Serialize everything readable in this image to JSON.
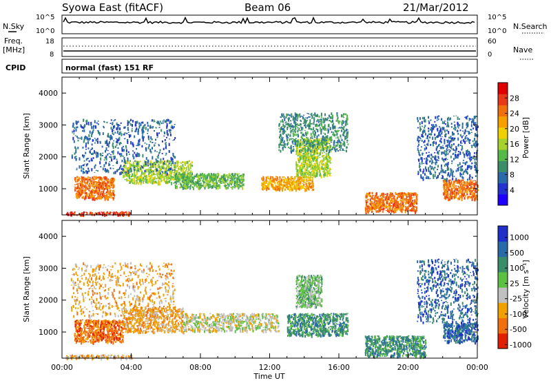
{
  "header": {
    "title": "Syowa East (fitACF)",
    "beam": "Beam 06",
    "date": "21/Mar/2012"
  },
  "status_panels": {
    "nsky_label": "N.Sky",
    "nsky_ticks": [
      "10^5",
      "10^0"
    ],
    "nsearch_label": "N.Search",
    "freq_label": "Freq.",
    "freq_unit": "[MHz]",
    "freq_ticks": [
      "18",
      "8"
    ],
    "nave_label": "Nave",
    "nave_ticks": [
      "60",
      "0"
    ],
    "cpid_label": "CPID",
    "cpid_text": "normal (fast) 151 RF"
  },
  "chart_data": [
    {
      "type": "heatmap",
      "name": "power",
      "ylabel": "Slant Range [km]",
      "xlabel": "",
      "x_ticks": [
        "00:00",
        "04:00",
        "08:00",
        "12:00",
        "16:00",
        "20:00",
        "00:00"
      ],
      "y_ticks": [
        "1000",
        "2000",
        "3000",
        "4000"
      ],
      "ylim": [
        180,
        4500
      ],
      "colorbar": {
        "label": "Power [dB]",
        "ticks": [
          "4",
          "8",
          "12",
          "16",
          "20",
          "24",
          "28"
        ],
        "colors": [
          "#1f00ff",
          "#2233d0",
          "#2a6aa8",
          "#3a8c6a",
          "#56b848",
          "#a7d12e",
          "#f0d000",
          "#f5a000",
          "#f07010",
          "#e83a1a",
          "#e00000"
        ]
      },
      "regions": [
        {
          "x0": 0.7,
          "x1": 3.0,
          "y0": 700,
          "y1": 1400,
          "level": 8
        },
        {
          "x0": 0.2,
          "x1": 4.0,
          "y0": 200,
          "y1": 300,
          "level": 9
        },
        {
          "x0": 3.5,
          "x1": 7.5,
          "y0": 1200,
          "y1": 1900,
          "level": 5
        },
        {
          "x0": 6.5,
          "x1": 10.5,
          "y0": 1050,
          "y1": 1500,
          "level": 4
        },
        {
          "x0": 11.5,
          "x1": 14.5,
          "y0": 1000,
          "y1": 1400,
          "level": 7
        },
        {
          "x0": 13.5,
          "x1": 15.5,
          "y0": 1400,
          "y1": 2600,
          "level": 5
        },
        {
          "x0": 17.5,
          "x1": 20.5,
          "y0": 300,
          "y1": 900,
          "level": 8
        },
        {
          "x0": 22.0,
          "x1": 24.0,
          "y0": 700,
          "y1": 1300,
          "level": 8
        },
        {
          "x0": 0.5,
          "x1": 6.5,
          "y0": 1500,
          "y1": 3200,
          "level": 2
        },
        {
          "x0": 12.5,
          "x1": 16.5,
          "y0": 2200,
          "y1": 3400,
          "level": 3
        },
        {
          "x0": 20.5,
          "x1": 24.0,
          "y0": 1300,
          "y1": 3300,
          "level": 2
        }
      ]
    },
    {
      "type": "heatmap",
      "name": "velocity",
      "ylabel": "Slant Range [km]",
      "xlabel": "Time UT",
      "x_ticks": [
        "00:00",
        "04:00",
        "08:00",
        "12:00",
        "16:00",
        "20:00",
        "00:00"
      ],
      "y_ticks": [
        "1000",
        "2000",
        "3000",
        "4000"
      ],
      "ylim": [
        180,
        4500
      ],
      "colorbar": {
        "label": "Velocity [m s⁻¹]",
        "ticks": [
          "1000",
          "500",
          "100",
          "25",
          "-25",
          "-100",
          "-500",
          "-1000"
        ],
        "colors": [
          "#1f2fc8",
          "#2a6aa8",
          "#3a8c6a",
          "#5cc040",
          "#c0c0c0",
          "#f0a000",
          "#f07010",
          "#e02000"
        ]
      },
      "regions": [
        {
          "x0": 0.7,
          "x1": 3.5,
          "y0": 700,
          "y1": 1400,
          "level": 6
        },
        {
          "x0": 0.2,
          "x1": 4.0,
          "y0": 200,
          "y1": 300,
          "level": 5
        },
        {
          "x0": 3.5,
          "x1": 7.0,
          "y0": 1000,
          "y1": 1800,
          "level": 5
        },
        {
          "x0": 7.0,
          "x1": 12.5,
          "y0": 1050,
          "y1": 1600,
          "level": 4
        },
        {
          "x0": 13.0,
          "x1": 16.5,
          "y0": 900,
          "y1": 1600,
          "level": 2
        },
        {
          "x0": 13.5,
          "x1": 15.0,
          "y0": 1800,
          "y1": 2800,
          "level": 3
        },
        {
          "x0": 17.5,
          "x1": 21.0,
          "y0": 250,
          "y1": 900,
          "level": 2
        },
        {
          "x0": 22.0,
          "x1": 24.0,
          "y0": 700,
          "y1": 1300,
          "level": 1
        },
        {
          "x0": 0.5,
          "x1": 6.5,
          "y0": 1500,
          "y1": 3200,
          "level": 5
        },
        {
          "x0": 20.5,
          "x1": 24.0,
          "y0": 1300,
          "y1": 3300,
          "level": 1
        }
      ]
    }
  ]
}
